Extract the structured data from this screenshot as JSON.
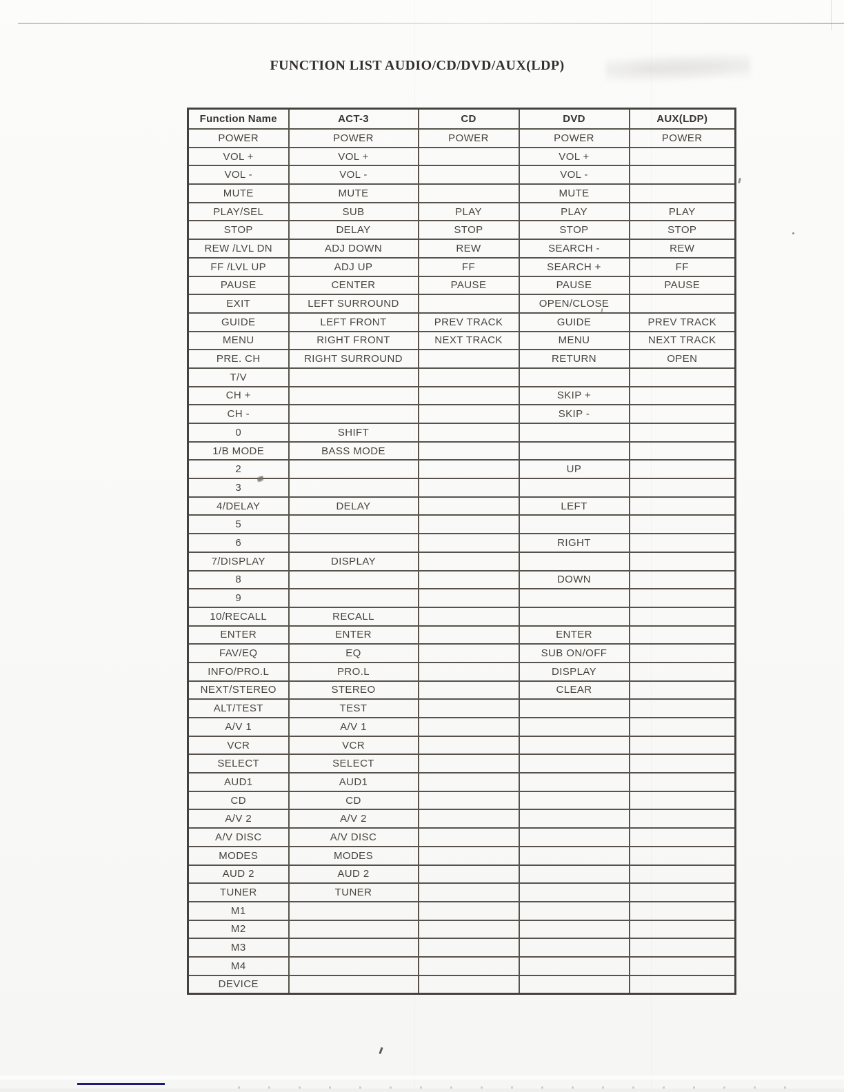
{
  "page": {
    "title": "FUNCTION LIST AUDIO/CD/DVD/AUX(LDP)"
  },
  "colors": {
    "table_line": "#57534c",
    "text": "#47443e",
    "underline_mark_blue": "#1c1c78"
  },
  "table": {
    "columns": [
      "Function Name",
      "ACT-3",
      "CD",
      "DVD",
      "AUX(LDP)"
    ],
    "rows": [
      [
        "POWER",
        "POWER",
        "POWER",
        "POWER",
        "POWER"
      ],
      [
        "VOL +",
        "VOL +",
        "",
        "VOL +",
        ""
      ],
      [
        "VOL -",
        "VOL -",
        "",
        "VOL -",
        ""
      ],
      [
        "MUTE",
        "MUTE",
        "",
        "MUTE",
        ""
      ],
      [
        "PLAY/SEL",
        "SUB",
        "PLAY",
        "PLAY",
        "PLAY"
      ],
      [
        "STOP",
        "DELAY",
        "STOP",
        "STOP",
        "STOP"
      ],
      [
        "REW /LVL DN",
        "ADJ DOWN",
        "REW",
        "SEARCH -",
        "REW"
      ],
      [
        "FF /LVL UP",
        "ADJ UP",
        "FF",
        "SEARCH +",
        "FF"
      ],
      [
        "PAUSE",
        "CENTER",
        "PAUSE",
        "PAUSE",
        "PAUSE"
      ],
      [
        "EXIT",
        "LEFT SURROUND",
        "",
        "OPEN/CLOSE",
        ""
      ],
      [
        "GUIDE",
        "LEFT FRONT",
        "PREV TRACK",
        "GUIDE",
        "PREV TRACK"
      ],
      [
        "MENU",
        "RIGHT FRONT",
        "NEXT TRACK",
        "MENU",
        "NEXT TRACK"
      ],
      [
        "PRE. CH",
        "RIGHT SURROUND",
        "",
        "RETURN",
        "OPEN"
      ],
      [
        "T/V",
        "",
        "",
        "",
        ""
      ],
      [
        "CH +",
        "",
        "",
        "SKIP +",
        ""
      ],
      [
        "CH -",
        "",
        "",
        "SKIP -",
        ""
      ],
      [
        "0",
        "SHIFT",
        "",
        "",
        ""
      ],
      [
        "1/B MODE",
        "BASS MODE",
        "",
        "",
        ""
      ],
      [
        "2",
        "",
        "",
        "UP",
        ""
      ],
      [
        "3",
        "",
        "",
        "",
        ""
      ],
      [
        "4/DELAY",
        "DELAY",
        "",
        "LEFT",
        ""
      ],
      [
        "5",
        "",
        "",
        "",
        ""
      ],
      [
        "6",
        "",
        "",
        "RIGHT",
        ""
      ],
      [
        "7/DISPLAY",
        "DISPLAY",
        "",
        "",
        ""
      ],
      [
        "8",
        "",
        "",
        "DOWN",
        ""
      ],
      [
        "9",
        "",
        "",
        "",
        ""
      ],
      [
        "10/RECALL",
        "RECALL",
        "",
        "",
        ""
      ],
      [
        "ENTER",
        "ENTER",
        "",
        "ENTER",
        ""
      ],
      [
        "FAV/EQ",
        "EQ",
        "",
        "SUB ON/OFF",
        ""
      ],
      [
        "INFO/PRO.L",
        "PRO.L",
        "",
        "DISPLAY",
        ""
      ],
      [
        "NEXT/STEREO",
        "STEREO",
        "",
        "CLEAR",
        ""
      ],
      [
        "ALT/TEST",
        "TEST",
        "",
        "",
        ""
      ],
      [
        "A/V 1",
        "A/V 1",
        "",
        "",
        ""
      ],
      [
        "VCR",
        "VCR",
        "",
        "",
        ""
      ],
      [
        "SELECT",
        "SELECT",
        "",
        "",
        ""
      ],
      [
        "AUD1",
        "AUD1",
        "",
        "",
        ""
      ],
      [
        "CD",
        "CD",
        "",
        "",
        ""
      ],
      [
        "A/V 2",
        "A/V 2",
        "",
        "",
        ""
      ],
      [
        "A/V DISC",
        "A/V DISC",
        "",
        "",
        ""
      ],
      [
        "MODES",
        "MODES",
        "",
        "",
        ""
      ],
      [
        "AUD 2",
        "AUD 2",
        "",
        "",
        ""
      ],
      [
        "TUNER",
        "TUNER",
        "",
        "",
        ""
      ],
      [
        "M1",
        "",
        "",
        "",
        ""
      ],
      [
        "M2",
        "",
        "",
        "",
        ""
      ],
      [
        "M3",
        "",
        "",
        "",
        ""
      ],
      [
        "M4",
        "",
        "",
        "",
        ""
      ],
      [
        "DEVICE",
        "",
        "",
        "",
        ""
      ]
    ]
  }
}
